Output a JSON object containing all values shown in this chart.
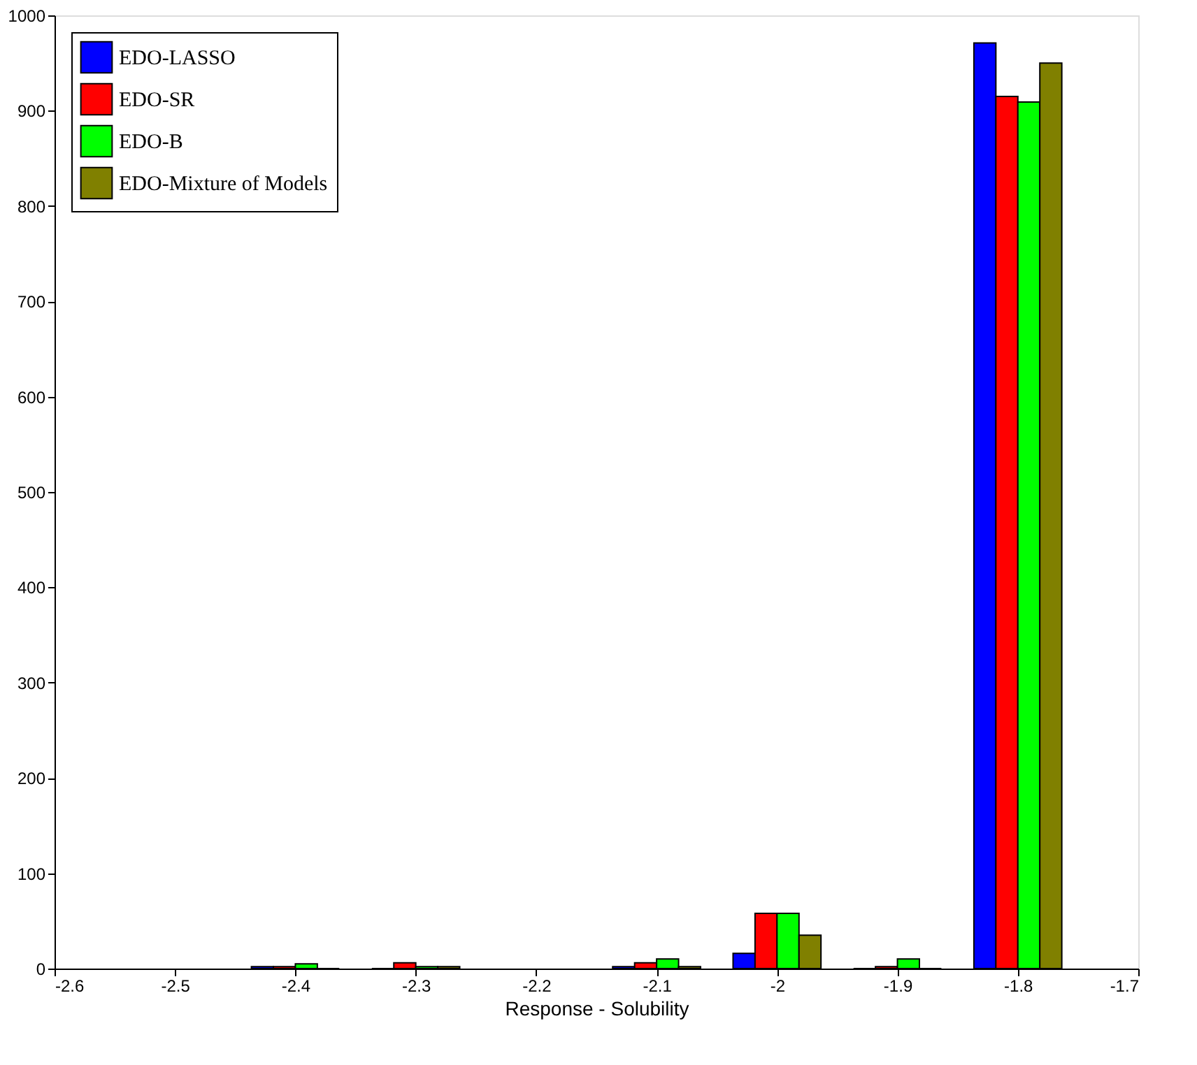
{
  "chart_data": {
    "type": "bar",
    "xlabel": "Response - Solubility",
    "x": [
      -2.4,
      -2.3,
      -2.1,
      -2,
      -1.9,
      -1.8
    ],
    "series": [
      {
        "name": "EDO-LASSO",
        "color": "#0000ff",
        "values": [
          2,
          0,
          2,
          16,
          0,
          971
        ]
      },
      {
        "name": "EDO-SR",
        "color": "#ff0000",
        "values": [
          2,
          6,
          6,
          58,
          2,
          915
        ]
      },
      {
        "name": "EDO-B",
        "color": "#00ff00",
        "values": [
          5,
          2,
          10,
          58,
          10,
          909
        ]
      },
      {
        "name": "EDO-Mixture of Models",
        "color": "#808000",
        "values": [
          0,
          2,
          2,
          35,
          0,
          950
        ]
      }
    ],
    "xlim": [
      -2.6,
      -1.7
    ],
    "xticks": [
      -2.6,
      -2.5,
      -2.4,
      -2.3,
      -2.2,
      -2.1,
      -2,
      -1.9,
      -1.8,
      -1.7
    ],
    "ylim": [
      0,
      1000
    ],
    "yticks": [
      0,
      100,
      200,
      300,
      400,
      500,
      600,
      700,
      800,
      900,
      1000
    ],
    "grid": false,
    "legend": "top left"
  }
}
